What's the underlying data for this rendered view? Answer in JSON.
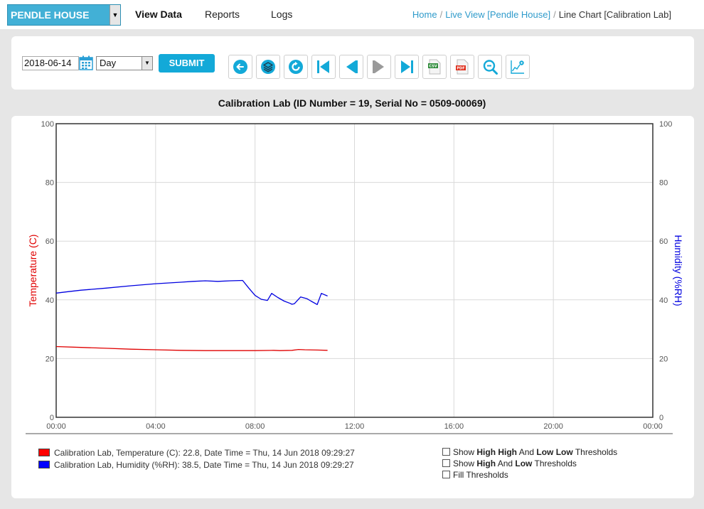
{
  "header": {
    "site_select": "PENDLE HOUSE",
    "nav": [
      "View Data",
      "Reports",
      "Logs"
    ],
    "breadcrumb": {
      "home": "Home",
      "live_view": "Live View [Pendle House]",
      "current": "Line Chart [Calibration Lab]",
      "separator": "/"
    }
  },
  "toolbar": {
    "date_value": "2018-06-14",
    "period_value": "Day",
    "submit_label": "SUBMIT",
    "buttons": [
      "back-icon",
      "layers-icon",
      "refresh-icon",
      "first-icon",
      "previous-icon",
      "next-icon",
      "last-icon",
      "csv-export-icon",
      "pdf-export-icon",
      "zoom-icon",
      "chart-settings-icon"
    ],
    "csv_label": "CSV",
    "pdf_label": "PDF"
  },
  "chart_title": "Calibration Lab (ID Number = 19, Serial No = 0509-00069)",
  "chart_data": {
    "type": "line",
    "ylabel": "Temperature (C)",
    "y2label": "Humidity (%RH)",
    "ylim": [
      0,
      100
    ],
    "y2lim": [
      0,
      100
    ],
    "yticks": [
      "0",
      "20",
      "40",
      "60",
      "80",
      "100"
    ],
    "xticks": [
      "00:00",
      "04:00",
      "08:00",
      "12:00",
      "16:00",
      "20:00",
      "00:00"
    ],
    "xlim_hours": [
      0,
      24
    ],
    "grid": true,
    "colors": {
      "temperature": "#e00000",
      "humidity": "#0000e0"
    },
    "series": [
      {
        "name": "Calibration Lab, Temperature (C)",
        "axis": "left",
        "x": [
          "00:00",
          "01:00",
          "02:00",
          "03:00",
          "04:00",
          "05:00",
          "06:00",
          "07:00",
          "08:00",
          "08:45",
          "09:00",
          "09:29",
          "09:45",
          "10:00",
          "10:30",
          "10:55"
        ],
        "values": [
          24.1,
          23.8,
          23.5,
          23.2,
          23.0,
          22.8,
          22.7,
          22.7,
          22.7,
          22.8,
          22.7,
          22.8,
          23.1,
          23.0,
          22.9,
          22.8
        ]
      },
      {
        "name": "Calibration Lab, Humidity (%RH)",
        "axis": "right",
        "x": [
          "00:00",
          "00:30",
          "01:00",
          "02:00",
          "03:00",
          "04:00",
          "05:00",
          "05:30",
          "06:00",
          "06:30",
          "07:00",
          "07:30",
          "07:45",
          "08:00",
          "08:15",
          "08:30",
          "08:40",
          "08:55",
          "09:10",
          "09:25",
          "09:29",
          "09:35",
          "09:50",
          "10:05",
          "10:15",
          "10:30",
          "10:40",
          "10:55"
        ],
        "values": [
          42.3,
          42.8,
          43.3,
          44.0,
          44.8,
          45.5,
          46.0,
          46.3,
          46.5,
          46.3,
          46.5,
          46.6,
          44.0,
          41.5,
          40.2,
          39.8,
          42.2,
          40.8,
          39.6,
          38.8,
          38.5,
          38.7,
          41.0,
          40.4,
          39.6,
          38.4,
          42.2,
          41.3
        ]
      }
    ]
  },
  "legend": [
    {
      "label": "Calibration Lab, Temperature (C): 22.8, Date Time = Thu, 14 Jun 2018 09:29:27",
      "color": "#ff0000"
    },
    {
      "label": "Calibration Lab, Humidity (%RH): 38.5, Date Time = Thu, 14 Jun 2018 09:29:27",
      "color": "#0000ff"
    }
  ],
  "threshold_options": [
    {
      "parts": [
        [
          "Show ",
          false
        ],
        [
          "High High",
          true
        ],
        [
          " And ",
          false
        ],
        [
          "Low Low",
          true
        ],
        [
          " Thresholds",
          false
        ]
      ],
      "checked": false
    },
    {
      "parts": [
        [
          "Show ",
          false
        ],
        [
          "High",
          true
        ],
        [
          " And ",
          false
        ],
        [
          "Low",
          true
        ],
        [
          " Thresholds",
          false
        ]
      ],
      "checked": false
    },
    {
      "parts": [
        [
          "Fill Thresholds",
          false
        ]
      ],
      "checked": false
    }
  ]
}
